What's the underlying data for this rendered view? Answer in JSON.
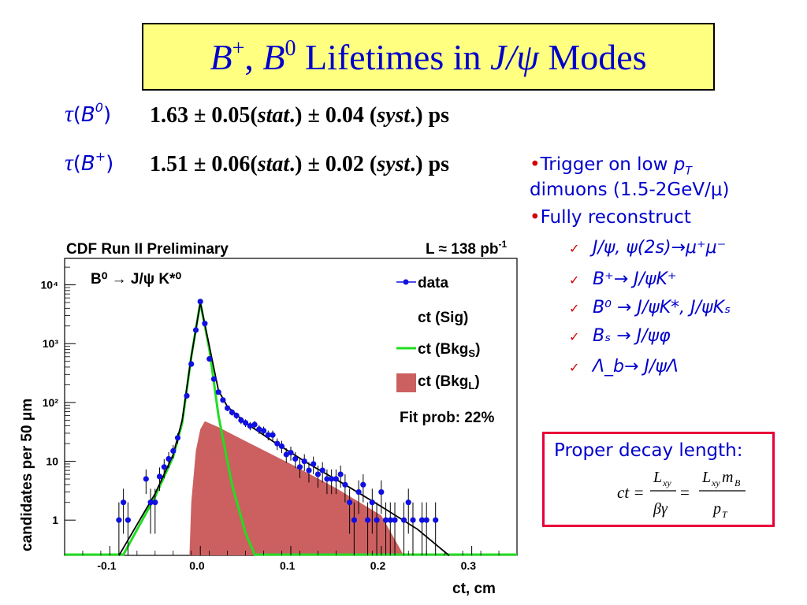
{
  "title": {
    "part1": "B",
    "sup1": "+",
    "sep": ", ",
    "part2": "B",
    "sup2": "0",
    "mid": " Lifetimes in ",
    "jpsi": "J/ψ",
    "end": " Modes"
  },
  "measurements": [
    {
      "tau": "τ",
      "paren_open": "(",
      "particle": "B",
      "charge": "0",
      "paren_close": ")",
      "value": "1.63 ± 0.05(",
      "stat": "stat",
      "mid": ".) ± 0.04 (",
      "syst": "syst",
      "end": ".) ps"
    },
    {
      "tau": "τ",
      "paren_open": "(",
      "particle": "B",
      "charge": "+",
      "paren_close": ")",
      "value": "1.51 ± 0.06(",
      "stat": "stat",
      "mid": ".) ± 0.02 (",
      "syst": "syst",
      "end": ".) ps"
    }
  ],
  "bullets": {
    "bullet1_a": "Trigger on low ",
    "bullet1_pt": "p",
    "bullet1_T": "T",
    "bullet1_b": "dimuons (1.5-2GeV/μ)",
    "bullet2": "Fully reconstruct",
    "sub": [
      "J/ψ, ψ(2s)→μ⁺μ⁻",
      "B⁺→ J/ψK⁺",
      "B⁰ → J/ψK*, J/ψKₛ",
      "Bₛ → J/ψφ",
      "Λ_b→ J/ψΛ"
    ]
  },
  "formula": {
    "title": "Proper decay length:",
    "lhs": "ct =",
    "num1": "L",
    "num1_sub": "xy",
    "den1": "βγ",
    "eq": "=",
    "num2": "L",
    "num2_sub": "xy",
    "num2_m": "m",
    "num2_msub": "B",
    "den2": "p",
    "den2_sub": "T"
  },
  "colors": {
    "blue": "#0000cc",
    "data_points": "#1010e0",
    "bkg_long": "#cc6060",
    "bkg_short": "#22dd22",
    "formula_border": "#e8003a"
  },
  "chart_data": {
    "type": "scatter",
    "header_left": "CDF Run II Preliminary",
    "header_right_prefix": "L ≈ 138 pb",
    "header_right_sup": "-1",
    "decay_label": "B⁰ → J/ψ K*⁰",
    "xlabel": "ct, cm",
    "ylabel": "candidates per 50  μm",
    "xlim": [
      -0.15,
      0.35
    ],
    "ylim_log10": [
      -0.6,
      4.45
    ],
    "x_ticks": [
      -0.1,
      0.0,
      0.1,
      0.2,
      0.3
    ],
    "x_tick_labels": [
      "-0.1",
      "0.0",
      "0.1",
      "0.2",
      "0.3"
    ],
    "y_ticks_log10": [
      0,
      1,
      2,
      3,
      4
    ],
    "y_tick_labels": [
      "1",
      "10",
      "10²",
      "10³",
      "10⁴"
    ],
    "legend": {
      "data": "data",
      "sig": "ct (Sig)",
      "bkgs": "ct (Bkg",
      "bkgs_sub": "S",
      "bkgl": "ct (Bkg",
      "bkgl_sub": "L",
      "close": ")"
    },
    "fit_prob": "Fit prob: 22%",
    "data_points": [
      [
        -0.09,
        1.0
      ],
      [
        -0.085,
        2.0
      ],
      [
        -0.08,
        1.0
      ],
      [
        -0.06,
        5.0
      ],
      [
        -0.055,
        2.0
      ],
      [
        -0.05,
        2.0
      ],
      [
        -0.045,
        5.5
      ],
      [
        -0.04,
        8.0
      ],
      [
        -0.035,
        11
      ],
      [
        -0.03,
        15
      ],
      [
        -0.025,
        25
      ],
      [
        -0.015,
        130
      ],
      [
        -0.01,
        450
      ],
      [
        -0.005,
        1700
      ],
      [
        0.0,
        5200
      ],
      [
        0.005,
        2200
      ],
      [
        0.01,
        550
      ],
      [
        0.015,
        250
      ],
      [
        0.02,
        150
      ],
      [
        0.025,
        110
      ],
      [
        0.03,
        80
      ],
      [
        0.035,
        68
      ],
      [
        0.04,
        60
      ],
      [
        0.045,
        50
      ],
      [
        0.05,
        45
      ],
      [
        0.055,
        40
      ],
      [
        0.06,
        42
      ],
      [
        0.065,
        35
      ],
      [
        0.07,
        33
      ],
      [
        0.075,
        28
      ],
      [
        0.08,
        28
      ],
      [
        0.085,
        20
      ],
      [
        0.09,
        18
      ],
      [
        0.095,
        13
      ],
      [
        0.1,
        14
      ],
      [
        0.105,
        11
      ],
      [
        0.11,
        8
      ],
      [
        0.115,
        10
      ],
      [
        0.12,
        7
      ],
      [
        0.125,
        9
      ],
      [
        0.13,
        6
      ],
      [
        0.135,
        7
      ],
      [
        0.14,
        5
      ],
      [
        0.145,
        5
      ],
      [
        0.15,
        5
      ],
      [
        0.155,
        6
      ],
      [
        0.16,
        4
      ],
      [
        0.165,
        2
      ],
      [
        0.17,
        1
      ],
      [
        0.175,
        3
      ],
      [
        0.18,
        4
      ],
      [
        0.185,
        1
      ],
      [
        0.19,
        2
      ],
      [
        0.195,
        1
      ],
      [
        0.2,
        3
      ],
      [
        0.205,
        1
      ],
      [
        0.21,
        1
      ],
      [
        0.215,
        1
      ],
      [
        0.225,
        1
      ],
      [
        0.23,
        2
      ],
      [
        0.235,
        1
      ],
      [
        0.245,
        1
      ],
      [
        0.25,
        1
      ],
      [
        0.26,
        1
      ]
    ],
    "total_fit": [
      [
        -0.09,
        0.25
      ],
      [
        -0.05,
        2.8
      ],
      [
        -0.03,
        13
      ],
      [
        -0.02,
        50
      ],
      [
        -0.01,
        600
      ],
      [
        0.0,
        5000
      ],
      [
        0.01,
        900
      ],
      [
        0.02,
        160
      ],
      [
        0.03,
        85
      ],
      [
        0.05,
        45
      ],
      [
        0.08,
        22
      ],
      [
        0.12,
        9
      ],
      [
        0.16,
        4
      ],
      [
        0.2,
        1.7
      ],
      [
        0.24,
        0.7
      ],
      [
        0.275,
        0.25
      ]
    ],
    "bkg_short_fit": [
      [
        -0.15,
        0.25
      ],
      [
        -0.085,
        0.25
      ],
      [
        -0.05,
        2.5
      ],
      [
        -0.03,
        12
      ],
      [
        -0.02,
        45
      ],
      [
        -0.01,
        600
      ],
      [
        0.0,
        5000
      ],
      [
        0.01,
        800
      ],
      [
        0.02,
        60
      ],
      [
        0.035,
        4
      ],
      [
        0.05,
        0.6
      ],
      [
        0.06,
        0.25
      ],
      [
        0.35,
        0.25
      ]
    ],
    "bkg_long_fit": [
      [
        -0.012,
        0.25
      ],
      [
        -0.01,
        2
      ],
      [
        -0.005,
        15
      ],
      [
        0.0,
        35
      ],
      [
        0.005,
        48
      ],
      [
        0.02,
        38
      ],
      [
        0.05,
        22
      ],
      [
        0.1,
        9
      ],
      [
        0.15,
        3.5
      ],
      [
        0.2,
        1.2
      ],
      [
        0.225,
        0.25
      ]
    ]
  }
}
